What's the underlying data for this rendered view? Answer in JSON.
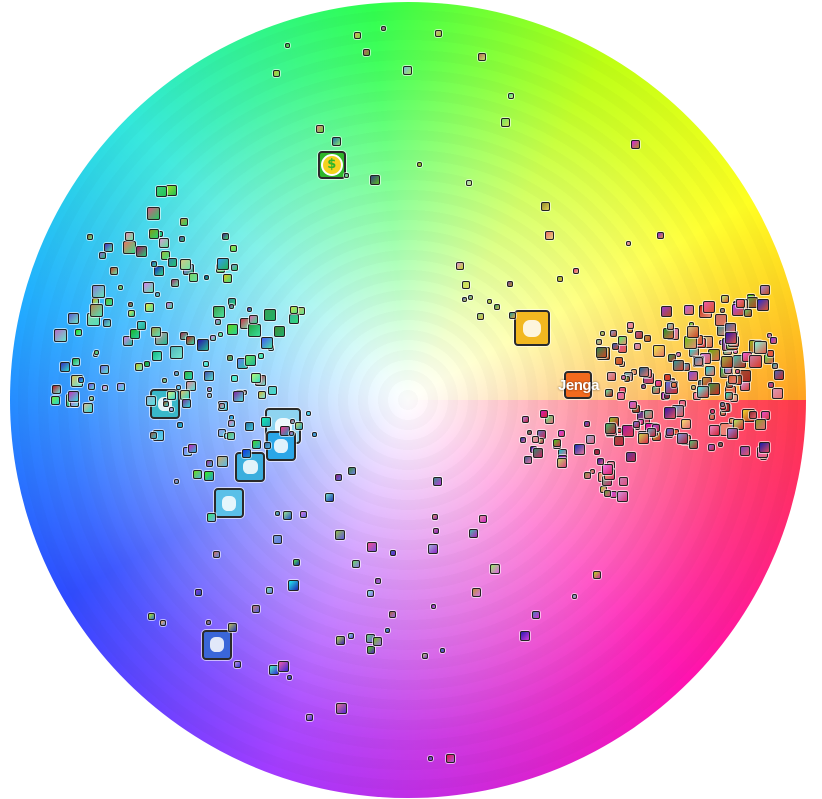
{
  "chart_data": {
    "type": "scatter",
    "title": "",
    "colors": {
      "red_at": "#ff2a3a",
      "magenta_at": "#ff00aa",
      "violet_at": "#9c2cff",
      "blue_at": "#1e3cff",
      "cyan_at": "#22e6d8",
      "green_at": "#20ff40",
      "yellow_at": "#ffff10",
      "orange_at": "#ff9a10",
      "center": "#ffffff"
    },
    "featured_icons": [
      {
        "name": "jenga-icon",
        "label": "Jenga",
        "hue": 5,
        "sat": 0.43,
        "color": "#f26a1e"
      },
      {
        "name": "cowboy-character-icon",
        "label": "",
        "hue": 30,
        "sat": 0.36,
        "color": "#f2b820"
      },
      {
        "name": "dollar-coin-icon",
        "label": "$",
        "hue": 108,
        "sat": 0.62,
        "color": "#2fb52a"
      },
      {
        "name": "chicken-icon",
        "label": "",
        "hue": 192,
        "sat": 0.32,
        "color": "#8fd4f0"
      },
      {
        "name": "bird-icon",
        "label": "",
        "hue": 200,
        "sat": 0.34,
        "color": "#2aa6e8"
      },
      {
        "name": "pig-icon",
        "label": "",
        "hue": 181,
        "sat": 0.61,
        "color": "#39b8c9"
      },
      {
        "name": "character-head-icon",
        "label": "",
        "hue": 203,
        "sat": 0.43,
        "color": "#3aaede"
      },
      {
        "name": "cartoon-face-icon",
        "label": "",
        "hue": 210,
        "sat": 0.52,
        "color": "#5bc0e8"
      },
      {
        "name": "mushroom-character-icon",
        "label": "",
        "hue": 232,
        "sat": 0.78,
        "color": "#3a66d8"
      }
    ]
  }
}
